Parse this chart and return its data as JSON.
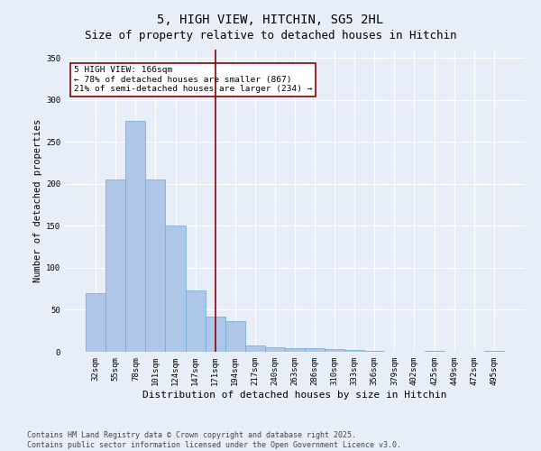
{
  "title": "5, HIGH VIEW, HITCHIN, SG5 2HL",
  "subtitle": "Size of property relative to detached houses in Hitchin",
  "xlabel": "Distribution of detached houses by size in Hitchin",
  "ylabel": "Number of detached properties",
  "bar_labels": [
    "32sqm",
    "55sqm",
    "78sqm",
    "101sqm",
    "124sqm",
    "147sqm",
    "171sqm",
    "194sqm",
    "217sqm",
    "240sqm",
    "263sqm",
    "286sqm",
    "310sqm",
    "333sqm",
    "356sqm",
    "379sqm",
    "402sqm",
    "425sqm",
    "449sqm",
    "472sqm",
    "495sqm"
  ],
  "bar_values": [
    70,
    205,
    275,
    205,
    150,
    73,
    42,
    37,
    8,
    5,
    4,
    4,
    3,
    2,
    1,
    0,
    0,
    1,
    0,
    0,
    1
  ],
  "bar_color": "#aec6e8",
  "bar_edge_color": "#6aaad4",
  "bg_color": "#e8eef8",
  "grid_color": "#ffffff",
  "vline_color": "#8b0000",
  "vline_pos": 6.0,
  "annotation_text": "5 HIGH VIEW: 166sqm\n← 78% of detached houses are smaller (867)\n21% of semi-detached houses are larger (234) →",
  "annotation_box_color": "#ffffff",
  "annotation_box_edge_color": "#8b0000",
  "ylim": [
    0,
    360
  ],
  "yticks": [
    0,
    50,
    100,
    150,
    200,
    250,
    300,
    350
  ],
  "footer": "Contains HM Land Registry data © Crown copyright and database right 2025.\nContains public sector information licensed under the Open Government Licence v3.0.",
  "title_fontsize": 10,
  "subtitle_fontsize": 9,
  "xlabel_fontsize": 8,
  "ylabel_fontsize": 7.5,
  "tick_fontsize": 6.5,
  "annotation_fontsize": 6.8,
  "footer_fontsize": 6
}
